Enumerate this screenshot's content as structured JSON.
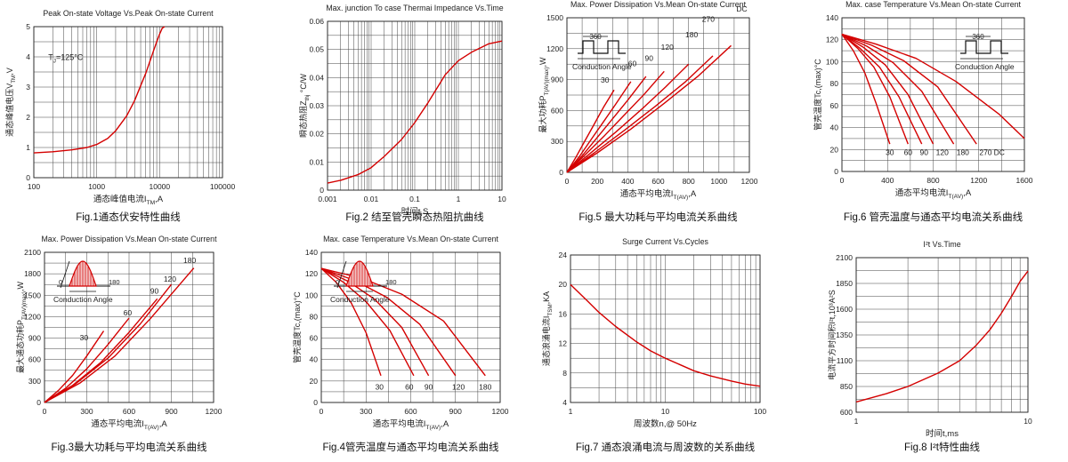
{
  "colors": {
    "curve": "#d40000",
    "grid": "#444444",
    "text": "#222222"
  },
  "chart_data": [
    {
      "id": "fig1",
      "type": "line",
      "title": "Peak On-state Voltage Vs.Peak On-state Current",
      "xlabel": "通态峰值电流I_TM,A",
      "ylabel": "通态峰值电压V_TM,V",
      "xscale": "log",
      "xlim": [
        100,
        100000
      ],
      "ylim": [
        0,
        5
      ],
      "xticks": [
        "100",
        "1000",
        "10000",
        "100000"
      ],
      "yticks": [
        "0",
        "1",
        "2",
        "3",
        "4",
        "5"
      ],
      "annotations": [
        {
          "text": "TJ=125°C",
          "x": 170,
          "y": 3.9
        }
      ],
      "caption": "Fig.1通态伏安特性曲线",
      "series": [
        {
          "x": [
            100,
            200,
            400,
            700,
            1000,
            1500,
            2000,
            3000,
            4000,
            5000,
            6000,
            7000,
            8000,
            9000,
            10000,
            11000,
            12000
          ],
          "y": [
            0.82,
            0.86,
            0.92,
            1.0,
            1.1,
            1.3,
            1.55,
            2.05,
            2.55,
            3.05,
            3.45,
            3.85,
            4.2,
            4.5,
            4.75,
            4.95,
            5.0
          ]
        }
      ]
    },
    {
      "id": "fig2",
      "type": "line",
      "title": "Max. junction To case Thermai Impedance Vs.Time",
      "xlabel": "时间t,S",
      "ylabel": "瞬态热阻Z_thj °C/W",
      "xscale": "log",
      "xlim": [
        0.001,
        10
      ],
      "ylim": [
        0,
        0.06
      ],
      "xticks": [
        "0.001",
        "0.01",
        "0.1",
        "1",
        "10"
      ],
      "yticks": [
        "0",
        "0.01",
        "0.02",
        "0.03",
        "0.04",
        "0.05",
        "0.06"
      ],
      "caption": "Fig.2 结至管壳瞬态热阻抗曲线",
      "series": [
        {
          "x": [
            0.001,
            0.002,
            0.005,
            0.01,
            0.02,
            0.05,
            0.1,
            0.2,
            0.5,
            1,
            2,
            5,
            10
          ],
          "y": [
            0.0025,
            0.0035,
            0.0055,
            0.008,
            0.012,
            0.018,
            0.024,
            0.031,
            0.041,
            0.046,
            0.049,
            0.052,
            0.053
          ]
        }
      ]
    },
    {
      "id": "fig5",
      "type": "line",
      "title": "Max. Power Dissipation Vs.Mean On-state Current",
      "xlabel": "通态平均电流I_T(AV),A",
      "ylabel": "最大功耗P_T(AV)(max),W",
      "xlim": [
        0,
        1200
      ],
      "ylim": [
        0,
        1500
      ],
      "xticks": [
        "0",
        "200",
        "400",
        "600",
        "800",
        "1000",
        "1200"
      ],
      "yticks": [
        "0",
        "300",
        "600",
        "900",
        "1200",
        "1500"
      ],
      "inset": {
        "label": "Conduction Angle",
        "value": "360",
        "shape": "square-wave"
      },
      "caption": "Fig.5 最大功耗与平均电流关系曲线",
      "series": [
        {
          "name": "30",
          "x": [
            0,
            60,
            120,
            180,
            240,
            310
          ],
          "y": [
            0,
            150,
            310,
            470,
            630,
            800
          ],
          "label_at": [
            250,
            870
          ]
        },
        {
          "name": "60",
          "x": [
            0,
            80,
            160,
            240,
            320,
            420
          ],
          "y": [
            0,
            150,
            320,
            490,
            660,
            880
          ],
          "label_at": [
            430,
            1030
          ]
        },
        {
          "name": "90",
          "x": [
            0,
            100,
            200,
            300,
            400,
            520
          ],
          "y": [
            0,
            160,
            340,
            520,
            700,
            930
          ],
          "label_at": [
            540,
            1080
          ]
        },
        {
          "name": "120",
          "x": [
            0,
            120,
            250,
            380,
            510,
            640
          ],
          "y": [
            0,
            170,
            360,
            560,
            760,
            980
          ],
          "label_at": [
            660,
            1190
          ]
        },
        {
          "name": "180",
          "x": [
            0,
            150,
            320,
            490,
            650,
            800
          ],
          "y": [
            0,
            180,
            390,
            610,
            830,
            1050
          ],
          "label_at": [
            820,
            1310
          ]
        },
        {
          "name": "270",
          "x": [
            0,
            180,
            380,
            580,
            780,
            960
          ],
          "y": [
            0,
            190,
            410,
            640,
            880,
            1130
          ],
          "label_at": [
            930,
            1460
          ]
        },
        {
          "name": "DC",
          "x": [
            0,
            200,
            420,
            640,
            860,
            1080
          ],
          "y": [
            0,
            190,
            420,
            670,
            930,
            1230
          ],
          "label_at": [
            1150,
            1560
          ]
        }
      ]
    },
    {
      "id": "fig6",
      "type": "line",
      "title": "Max. case Temperature Vs.Mean On-state Current",
      "xlabel": "通态平均电流I_T(AV),A",
      "ylabel": "管壳温度Tc,(max)°C",
      "xlim": [
        0,
        1600
      ],
      "ylim": [
        0,
        140
      ],
      "xticks": [
        "0",
        "400",
        "800",
        "1200",
        "1600"
      ],
      "yticks": [
        "0",
        "20",
        "40",
        "60",
        "80",
        "100",
        "120",
        "140"
      ],
      "inset": {
        "label": "Conduction Angle",
        "value": "360",
        "shape": "square-wave"
      },
      "caption": "Fig.6 管壳温度与通态平均电流关系曲线",
      "series": [
        {
          "name": "30",
          "x": [
            0,
            100,
            200,
            300,
            420
          ],
          "y": [
            125,
            110,
            90,
            62,
            25
          ],
          "label_at": [
            420,
            15
          ]
        },
        {
          "name": "60",
          "x": [
            0,
            140,
            280,
            420,
            580
          ],
          "y": [
            125,
            112,
            95,
            68,
            25
          ],
          "label_at": [
            580,
            15
          ]
        },
        {
          "name": "90",
          "x": [
            0,
            160,
            330,
            500,
            700
          ],
          "y": [
            125,
            112,
            95,
            68,
            25
          ],
          "label_at": [
            720,
            15
          ]
        },
        {
          "name": "120",
          "x": [
            0,
            190,
            380,
            580,
            800
          ],
          "y": [
            125,
            113,
            97,
            70,
            25
          ],
          "label_at": [
            880,
            15
          ]
        },
        {
          "name": "180",
          "x": [
            0,
            220,
            450,
            700,
            980
          ],
          "y": [
            125,
            114,
            99,
            73,
            25
          ],
          "label_at": [
            1060,
            15
          ]
        },
        {
          "name": "270",
          "x": [
            0,
            260,
            540,
            840,
            1180
          ],
          "y": [
            125,
            115,
            101,
            77,
            25
          ],
          "label_at": [
            1260,
            15
          ]
        },
        {
          "name": "DC",
          "x": [
            0,
            300,
            650,
            1000,
            1380,
            1600
          ],
          "y": [
            125,
            116,
            103,
            82,
            52,
            30
          ],
          "label_at": [
            1380,
            15
          ]
        }
      ]
    },
    {
      "id": "fig3",
      "type": "line",
      "title": "Max. Power Dissipation Vs.Mean On-state Current",
      "xlabel": "通态平均电流I_T(AV),A",
      "ylabel": "最大通态功耗P_T(AV)(max),W",
      "xlim": [
        0,
        1200
      ],
      "ylim": [
        0,
        2100
      ],
      "xticks": [
        "0",
        "300",
        "600",
        "900",
        "1200"
      ],
      "yticks": [
        "0",
        "300",
        "600",
        "900",
        "1200",
        "1500",
        "1800",
        "2100"
      ],
      "inset": {
        "label": "Conduction Angle",
        "value": "180",
        "shape": "half-sine"
      },
      "caption": "Fig.3最大功耗与平均电流关系曲线",
      "series": [
        {
          "name": "30",
          "x": [
            0,
            100,
            200,
            300,
            420
          ],
          "y": [
            0,
            170,
            380,
            650,
            1000
          ],
          "label_at": [
            280,
            870
          ]
        },
        {
          "name": "60",
          "x": [
            0,
            150,
            300,
            450,
            600
          ],
          "y": [
            0,
            200,
            470,
            810,
            1180
          ],
          "label_at": [
            590,
            1220
          ]
        },
        {
          "name": "90",
          "x": [
            0,
            200,
            400,
            600,
            800
          ],
          "y": [
            0,
            240,
            560,
            980,
            1450
          ],
          "label_at": [
            780,
            1520
          ]
        },
        {
          "name": "120",
          "x": [
            0,
            220,
            450,
            680,
            900
          ],
          "y": [
            0,
            260,
            620,
            1100,
            1650
          ],
          "label_at": [
            890,
            1690
          ]
        },
        {
          "name": "180",
          "x": [
            0,
            250,
            500,
            750,
            1060
          ],
          "y": [
            0,
            270,
            650,
            1170,
            1880
          ],
          "label_at": [
            1030,
            1950
          ]
        }
      ]
    },
    {
      "id": "fig4",
      "type": "line",
      "title": "Max. case Temperature Vs.Mean On-state Current",
      "xlabel": "通态平均电流I_T(AV),A",
      "ylabel": "管壳温度Tc,(max)°C",
      "xlim": [
        0,
        1200
      ],
      "ylim": [
        0,
        140
      ],
      "xticks": [
        "0",
        "300",
        "600",
        "900",
        "1200"
      ],
      "yticks": [
        "0",
        "20",
        "40",
        "60",
        "80",
        "100",
        "120",
        "140"
      ],
      "inset": {
        "label": "Conduction Angle",
        "value": "180",
        "shape": "half-sine"
      },
      "caption": "Fig.4管壳温度与通态平均电流关系曲线",
      "series": [
        {
          "name": "30",
          "x": [
            0,
            100,
            200,
            300,
            400
          ],
          "y": [
            125,
            112,
            93,
            65,
            25
          ],
          "label_at": [
            390,
            12
          ]
        },
        {
          "name": "60",
          "x": [
            0,
            150,
            300,
            460,
            620
          ],
          "y": [
            125,
            112,
            94,
            67,
            25
          ],
          "label_at": [
            590,
            12
          ]
        },
        {
          "name": "90",
          "x": [
            0,
            180,
            360,
            540,
            720
          ],
          "y": [
            125,
            113,
            96,
            70,
            25
          ],
          "label_at": [
            720,
            12
          ]
        },
        {
          "name": "120",
          "x": [
            0,
            220,
            440,
            660,
            900
          ],
          "y": [
            125,
            114,
            98,
            73,
            25
          ],
          "label_at": [
            920,
            12
          ]
        },
        {
          "name": "180",
          "x": [
            0,
            270,
            540,
            820,
            1100
          ],
          "y": [
            125,
            116,
            101,
            76,
            25
          ],
          "label_at": [
            1100,
            12
          ]
        }
      ]
    },
    {
      "id": "fig7",
      "type": "line",
      "title": "Surge Current Vs.Cycles",
      "xlabel": "周波数n,@ 50Hz",
      "ylabel": "通态浪涌电流I_TSM,KA",
      "xscale": "log",
      "xlim": [
        1,
        100
      ],
      "ylim": [
        4,
        24
      ],
      "xticks": [
        "1",
        "10",
        "100"
      ],
      "yticks": [
        "4",
        "8",
        "12",
        "16",
        "20",
        "24"
      ],
      "caption": "Fig.7 通态浪涌电流与周波数的关系曲线",
      "series": [
        {
          "x": [
            1,
            1.5,
            2,
            3,
            5,
            7,
            10,
            20,
            30,
            50,
            70,
            100
          ],
          "y": [
            20,
            17.8,
            16.2,
            14.3,
            12.2,
            11.0,
            10.0,
            8.3,
            7.6,
            6.9,
            6.5,
            6.2
          ]
        }
      ]
    },
    {
      "id": "fig8",
      "type": "line",
      "title": "I²t Vs.Time",
      "xlabel": "时间t,ms",
      "ylabel": "电流平方时间积I²t,10³A²S",
      "xscale": "log",
      "xlim": [
        1,
        10
      ],
      "ylim": [
        600,
        2100
      ],
      "xticks": [
        "1",
        "10"
      ],
      "yticks": [
        "600",
        "850",
        "1100",
        "1350",
        "1600",
        "1850",
        "2100"
      ],
      "caption": "Fig.8 I²t特性曲线",
      "series": [
        {
          "x": [
            1,
            1.5,
            2,
            3,
            4,
            5,
            6,
            7,
            8,
            9,
            10
          ],
          "y": [
            700,
            780,
            850,
            980,
            1100,
            1250,
            1400,
            1560,
            1720,
            1870,
            1970
          ]
        }
      ]
    }
  ]
}
